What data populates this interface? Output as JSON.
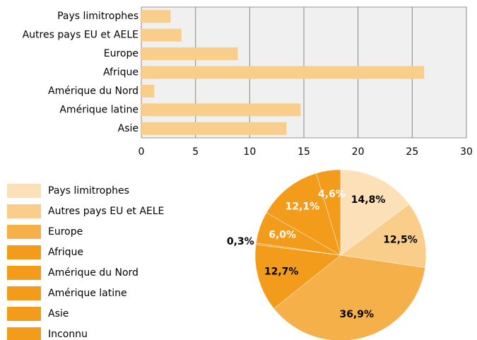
{
  "chart_data": [
    {
      "type": "bar",
      "orientation": "horizontal",
      "categories": [
        "Pays limitrophes",
        "Autres pays EU et AELE",
        "Europe",
        "Afrique",
        "Amérique du Nord",
        "Amérique latine",
        "Asie"
      ],
      "values": [
        2.7,
        3.7,
        8.9,
        26.1,
        1.2,
        14.7,
        13.4
      ],
      "color": "#f9cd8a",
      "xlim": [
        0,
        30
      ],
      "xticks": [
        0,
        5,
        10,
        15,
        20,
        25,
        30
      ],
      "grid": true
    },
    {
      "type": "pie",
      "categories": [
        "Pays limitrophes",
        "Autres pays EU et AELE",
        "Europe",
        "Afrique",
        "Amérique du Nord",
        "Amérique latine",
        "Asie",
        "Inconnu"
      ],
      "values": [
        14.8,
        12.5,
        36.9,
        12.7,
        0.3,
        6.0,
        12.1,
        4.6
      ],
      "value_labels": [
        "14,8%",
        "12,5%",
        "36,9%",
        "12,7%",
        "0,3%",
        "6,0%",
        "12,1%",
        "4,6%"
      ],
      "colors": [
        "#fbe0b8",
        "#f9cd8a",
        "#f5b04a",
        "#f39c1b",
        "#f39c1b",
        "#f39c1b",
        "#f39c1b",
        "#f39c1b"
      ],
      "label_colors": [
        "#000",
        "#000",
        "#000",
        "#000",
        "#000",
        "#fff",
        "#fff",
        "#fff"
      ],
      "legend": "left"
    }
  ]
}
